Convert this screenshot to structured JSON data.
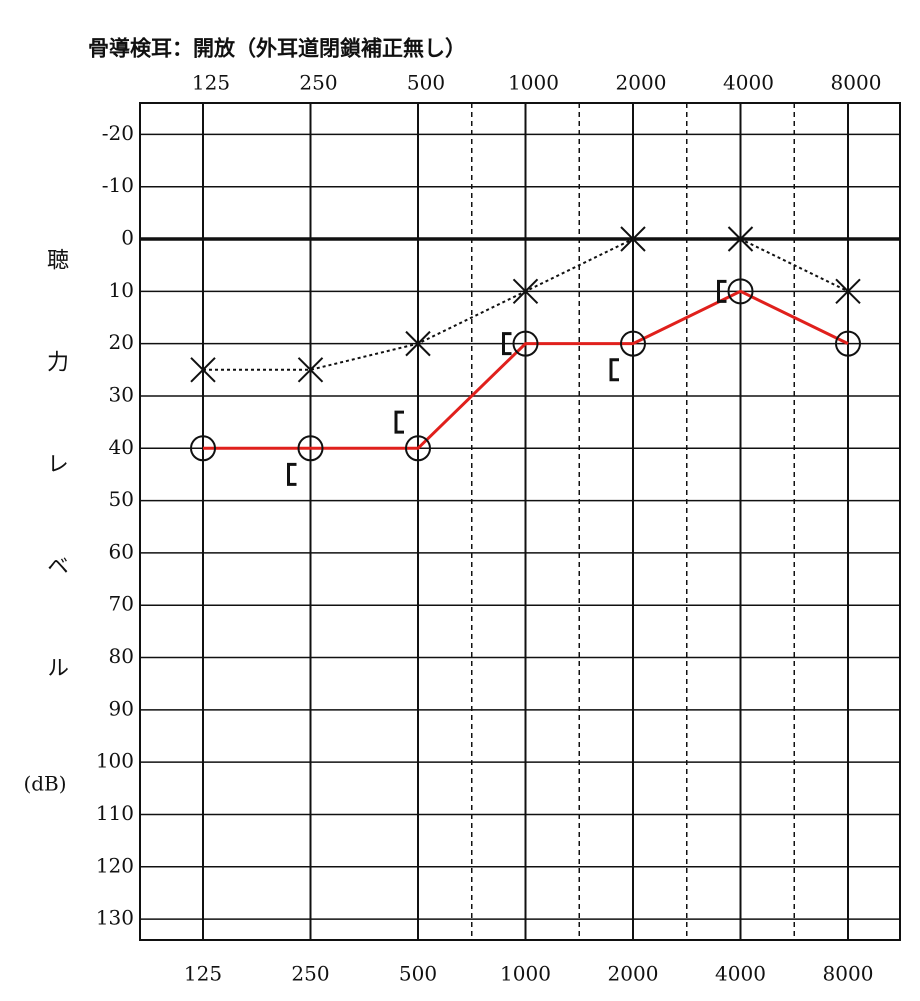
{
  "chart_data": {
    "type": "audiogram",
    "title": "骨導検耳：開放（外耳道閉鎖補正無し）",
    "ylabel": "聴力レベル",
    "yunit": "(dB)",
    "categories": [
      "125",
      "250",
      "500",
      "1000",
      "2000",
      "4000",
      "8000"
    ],
    "ylim": [
      -26,
      134
    ],
    "yinvert": true,
    "yticks": [
      -20,
      -10,
      0,
      10,
      20,
      30,
      40,
      50,
      60,
      70,
      80,
      90,
      100,
      110,
      120,
      130
    ],
    "grid": true,
    "series": [
      {
        "color": "#e0201c",
        "marker": "circle",
        "line": "solid",
        "values": [
          40,
          40,
          40,
          20,
          20,
          10,
          20
        ]
      },
      {
        "color": "#111111",
        "marker": "cross",
        "line": "dotted",
        "values": [
          25,
          25,
          20,
          10,
          0,
          0,
          10
        ]
      },
      {
        "color": "#111111",
        "marker": "bracket",
        "line": "none",
        "values": [
          null,
          45,
          35,
          20,
          25,
          10,
          null
        ]
      }
    ]
  }
}
